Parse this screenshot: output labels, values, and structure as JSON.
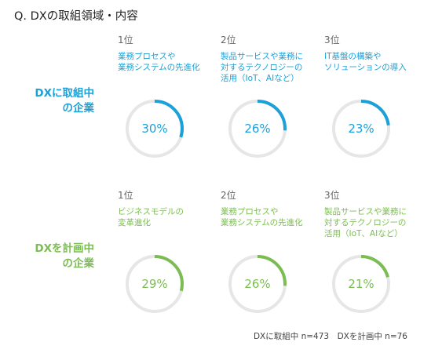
{
  "title": "Q. DXの取組領域・内容",
  "footnote": "DXに取組中 n=473　DXを計画中 n=76",
  "colors": {
    "active": "#1ba1d8",
    "planning": "#7cbd53",
    "track": "#e6e6e6"
  },
  "chart_data": [
    {
      "type": "pie",
      "group": "DXに取組中の企業",
      "group_lines": [
        "DXに取組中",
        "の企業"
      ],
      "color": "#1ba1d8",
      "items": [
        {
          "rank": "1位",
          "label_lines": [
            "業務プロセスや",
            "業務システムの先進化"
          ],
          "value": 30,
          "value_label": "30%"
        },
        {
          "rank": "2位",
          "label_lines": [
            "製品サービスや業務に",
            "対するテクノロジーの",
            "活用（IoT、AIなど）"
          ],
          "value": 26,
          "value_label": "26%"
        },
        {
          "rank": "3位",
          "label_lines": [
            "IT基盤の構築や",
            "ソリューションの導入"
          ],
          "value": 23,
          "value_label": "23%"
        }
      ]
    },
    {
      "type": "pie",
      "group": "DXを計画中の企業",
      "group_lines": [
        "DXを計画中",
        "の企業"
      ],
      "color": "#7cbd53",
      "items": [
        {
          "rank": "1位",
          "label_lines": [
            "ビジネスモデルの",
            "変革進化"
          ],
          "value": 29,
          "value_label": "29%"
        },
        {
          "rank": "2位",
          "label_lines": [
            "業務プロセスや",
            "業務システムの先進化"
          ],
          "value": 26,
          "value_label": "26%"
        },
        {
          "rank": "3位",
          "label_lines": [
            "製品サービスや業務に",
            "対するテクノロジーの",
            "活用（IoT、AIなど）"
          ],
          "value": 21,
          "value_label": "21%"
        }
      ]
    }
  ]
}
